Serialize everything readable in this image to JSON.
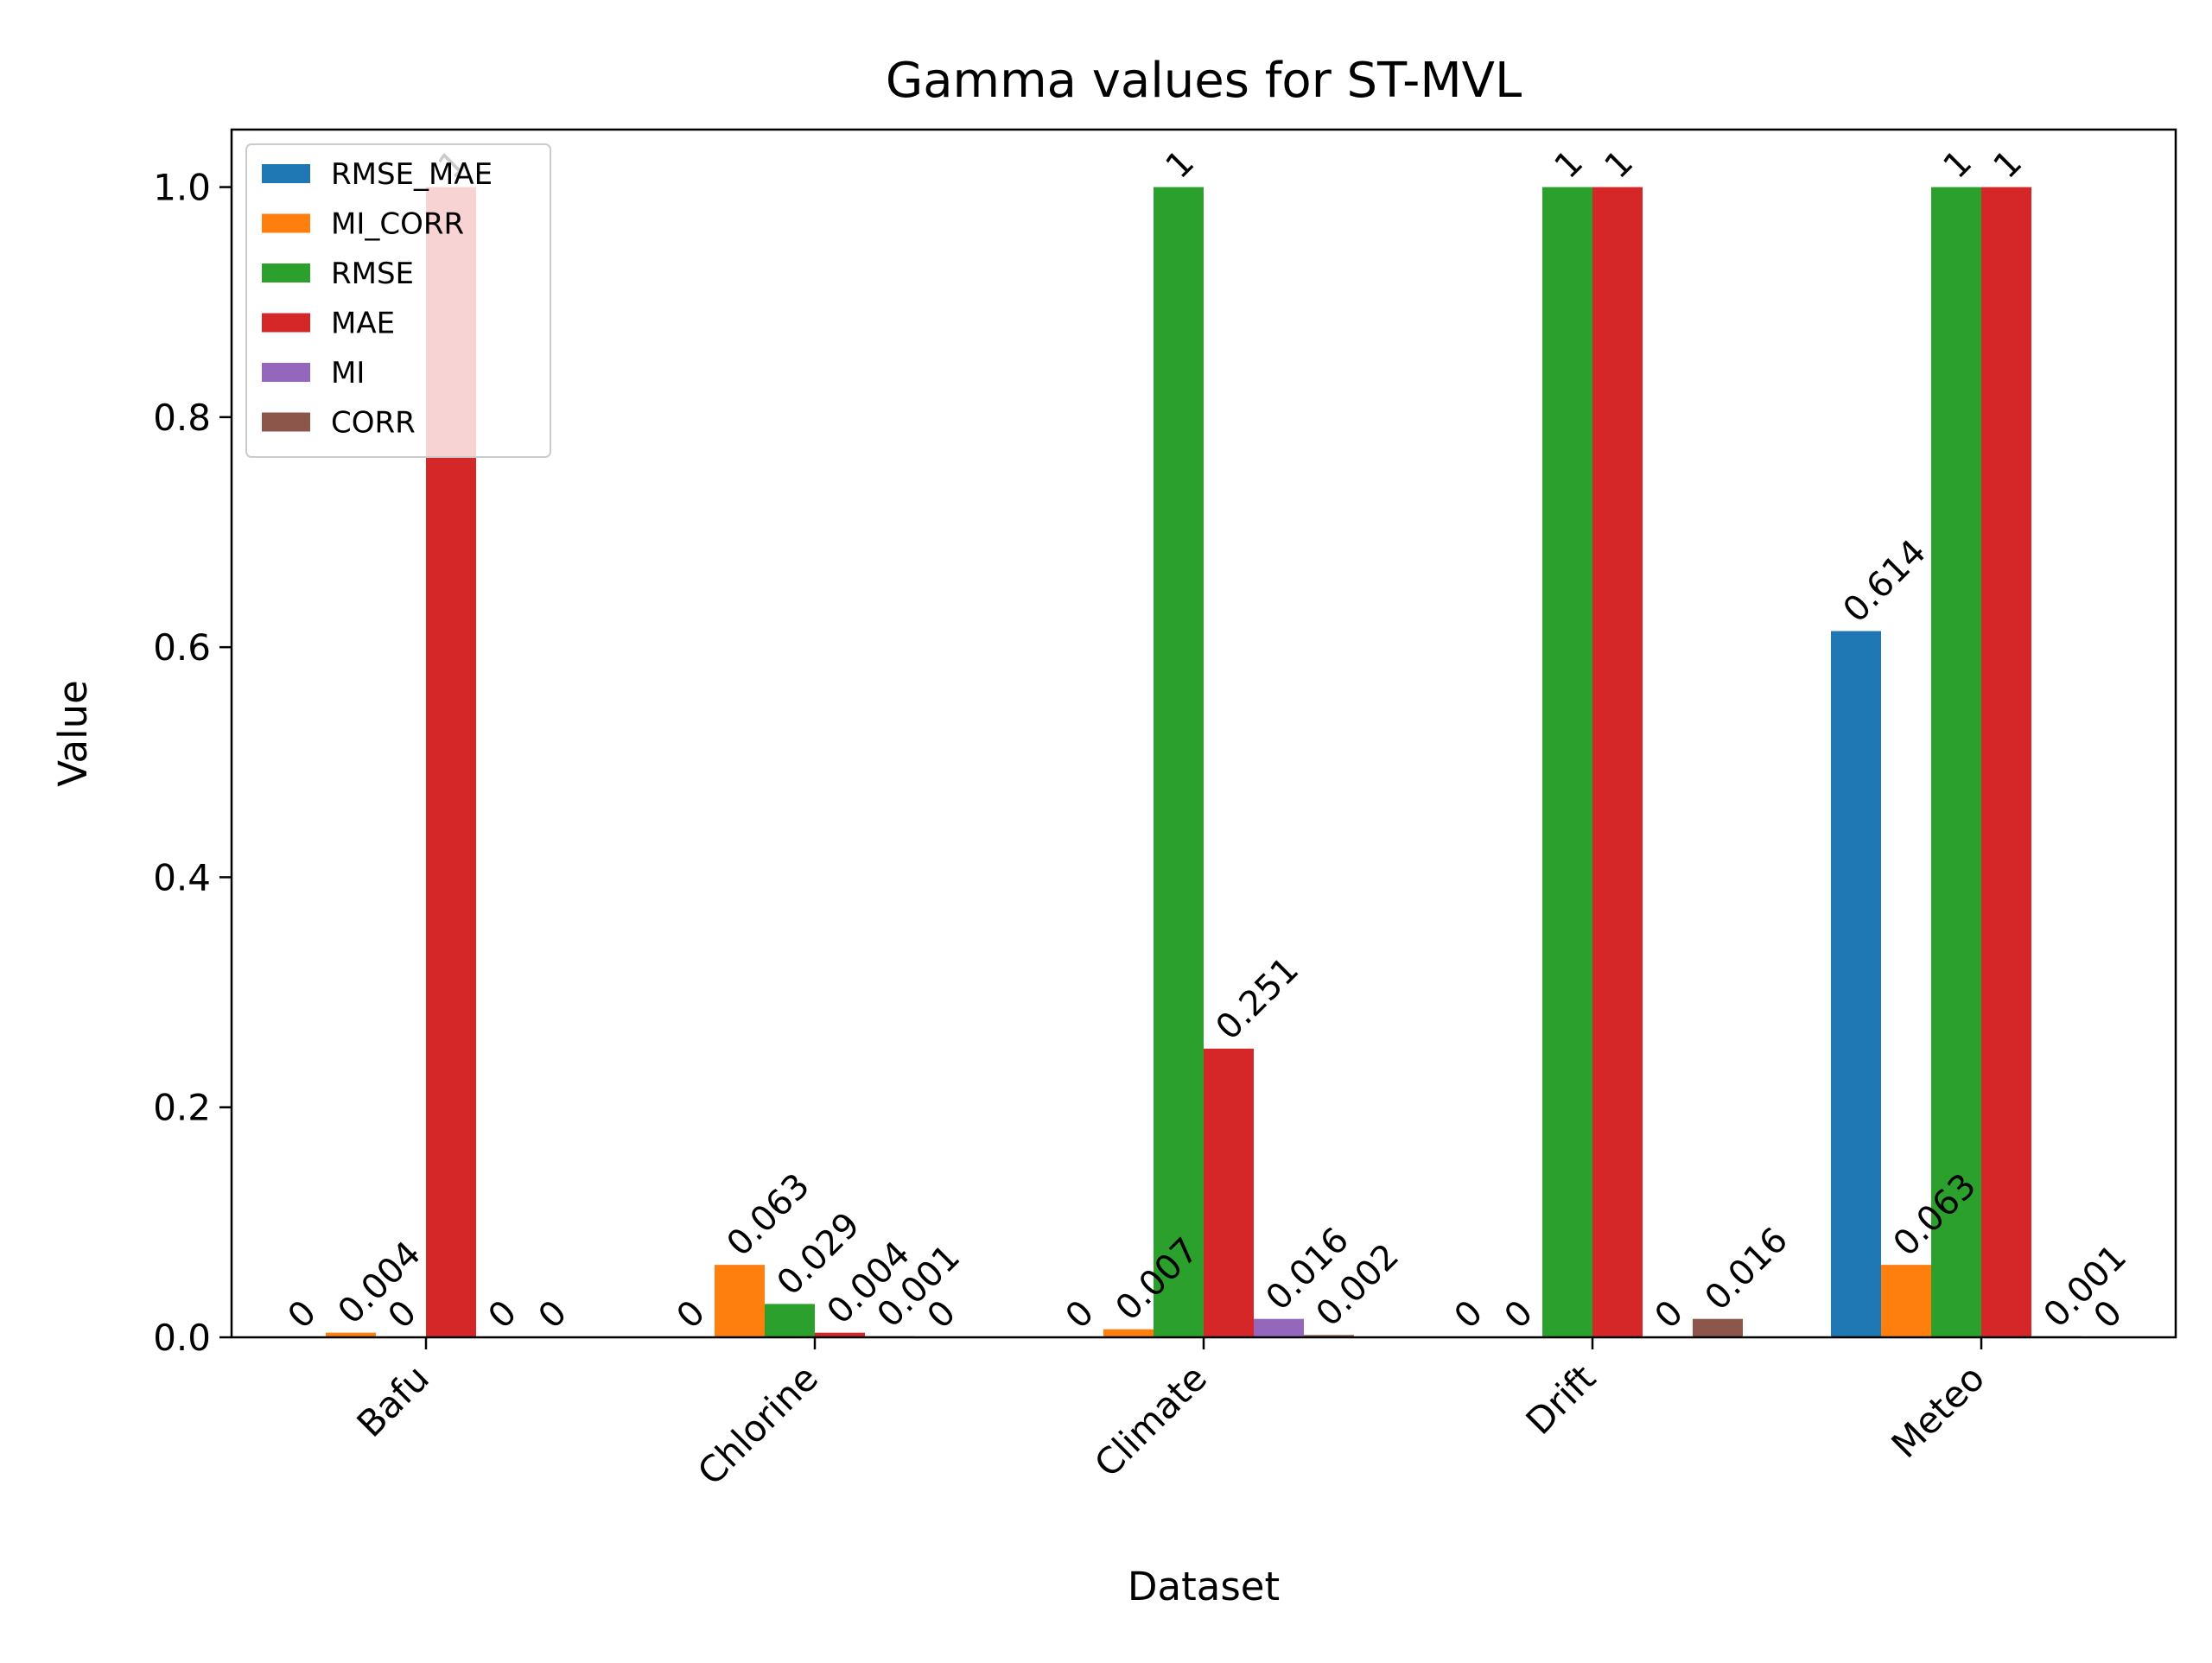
{
  "chart_data": {
    "type": "bar",
    "title": "Gamma values for ST-MVL",
    "xlabel": "Dataset",
    "ylabel": "Value",
    "categories": [
      "Bafu",
      "Chlorine",
      "Climate",
      "Drift",
      "Meteo"
    ],
    "ylim": [
      0,
      1.05
    ],
    "yticks": [
      "0.0",
      "0.2",
      "0.4",
      "0.6",
      "0.8",
      "1.0"
    ],
    "grid": false,
    "legend_position": "top-left",
    "series": [
      {
        "name": "RMSE_MAE",
        "color": "#1f77b4",
        "values": [
          0,
          0,
          0,
          0,
          0.614
        ],
        "labels": [
          "0",
          "0",
          "0",
          "0",
          "0.614"
        ]
      },
      {
        "name": "MI_CORR",
        "color": "#ff7f0e",
        "values": [
          0.004,
          0.063,
          0.007,
          0,
          0.063
        ],
        "labels": [
          "0.004",
          "0.063",
          "0.007",
          "0",
          "0.063"
        ]
      },
      {
        "name": "RMSE",
        "color": "#2ca02c",
        "values": [
          0,
          0.029,
          1,
          1,
          1
        ],
        "labels": [
          "0",
          "0.029",
          "1",
          "1",
          "1"
        ]
      },
      {
        "name": "MAE",
        "color": "#d62728",
        "values": [
          1,
          0.004,
          0.251,
          1,
          1
        ],
        "labels": [
          "1",
          "0.004",
          "0.251",
          "1",
          "1"
        ]
      },
      {
        "name": "MI",
        "color": "#9467bd",
        "values": [
          0,
          0.001,
          0.016,
          0,
          0.001
        ],
        "labels": [
          "0",
          "0.001",
          "0.016",
          "0",
          "0.001"
        ]
      },
      {
        "name": "CORR",
        "color": "#8c564b",
        "values": [
          0,
          0,
          0.002,
          0.016,
          0
        ],
        "labels": [
          "0",
          "0",
          "0.002",
          "0.016",
          "0"
        ]
      }
    ]
  }
}
